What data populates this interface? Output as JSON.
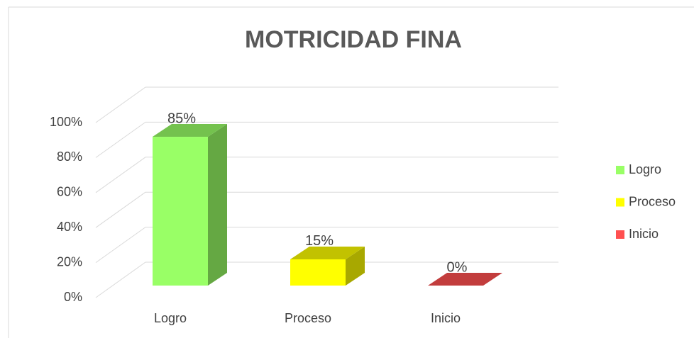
{
  "chart_data": {
    "type": "bar3d",
    "title": "MOTRICIDAD FINA",
    "categories": [
      "Logro",
      "Proceso",
      "Inicio"
    ],
    "values": [
      85,
      15,
      0
    ],
    "value_labels": [
      "85%",
      "15%",
      "0%"
    ],
    "colors": [
      "#99ff66",
      "#ffff00",
      "#ff5050"
    ],
    "ylim": [
      0,
      100
    ],
    "yticks": [
      {
        "value": 0,
        "label": "0%"
      },
      {
        "value": 20,
        "label": "20%"
      },
      {
        "value": 40,
        "label": "40%"
      },
      {
        "value": 60,
        "label": "60%"
      },
      {
        "value": 80,
        "label": "80%"
      },
      {
        "value": 100,
        "label": "100%"
      }
    ],
    "grid": true,
    "legend": "right"
  }
}
